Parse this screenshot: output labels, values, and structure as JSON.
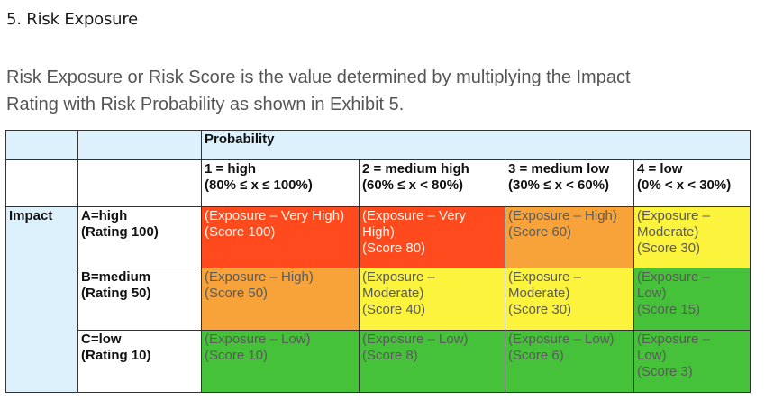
{
  "heading": "5. Risk Exposure",
  "intro": [
    "Risk Exposure or Risk Score is the value determined by multiplying the Impact",
    "Rating with Risk Probability as shown in Exhibit 5."
  ],
  "table": {
    "probability_label": "Probability",
    "impact_label": "Impact",
    "columns": [
      {
        "line1": "1 = high",
        "line2": "(80% ≤ x ≤ 100%)"
      },
      {
        "line1": "2 = medium high",
        "line2": "(60% ≤ x < 80%)"
      },
      {
        "line1": "3 = medium low",
        "line2": "(30% ≤ x < 60%)"
      },
      {
        "line1": "4 = low",
        "line2": "(0% < x < 30%)"
      }
    ],
    "rows": [
      {
        "line1": "A=high",
        "line2": "(Rating 100)",
        "cells": [
          {
            "lines": [
              "(Exposure – Very High)",
              "(Score 100)"
            ],
            "color": "red"
          },
          {
            "lines": [
              "(Exposure – Very",
              "High)",
              "(Score 80)"
            ],
            "color": "red"
          },
          {
            "lines": [
              "(Exposure – High)",
              "(Score 60)"
            ],
            "color": "orange"
          },
          {
            "lines": [
              "(Exposure –",
              "Moderate)",
              "(Score 30)"
            ],
            "color": "yellow"
          }
        ]
      },
      {
        "line1": "B=medium",
        "line2": "(Rating 50)",
        "cells": [
          {
            "lines": [
              "(Exposure – High)",
              "(Score 50)"
            ],
            "color": "orange"
          },
          {
            "lines": [
              "(Exposure –",
              "Moderate)",
              "(Score 40)"
            ],
            "color": "yellow"
          },
          {
            "lines": [
              "(Exposure –",
              "Moderate)",
              "(Score 30)"
            ],
            "color": "yellow"
          },
          {
            "lines": [
              "(Exposure –",
              "Low)",
              "(Score 15)"
            ],
            "color": "green"
          }
        ]
      },
      {
        "line1": "C=low",
        "line2": "(Rating 10)",
        "cells": [
          {
            "lines": [
              "(Exposure – Low)",
              "(Score 10)"
            ],
            "color": "green"
          },
          {
            "lines": [
              "(Exposure – Low)",
              "(Score 8)"
            ],
            "color": "green"
          },
          {
            "lines": [
              "(Exposure – Low)",
              "(Score 6)"
            ],
            "color": "green"
          },
          {
            "lines": [
              "(Exposure –",
              "Low)",
              "(Score 3)"
            ],
            "color": "green"
          }
        ]
      }
    ]
  },
  "colors": {
    "header_blue": "#dcf1fb",
    "very_high": "#ff4a1e",
    "high": "#f8a23a",
    "moderate": "#fcf33c",
    "low": "#46c23a"
  }
}
